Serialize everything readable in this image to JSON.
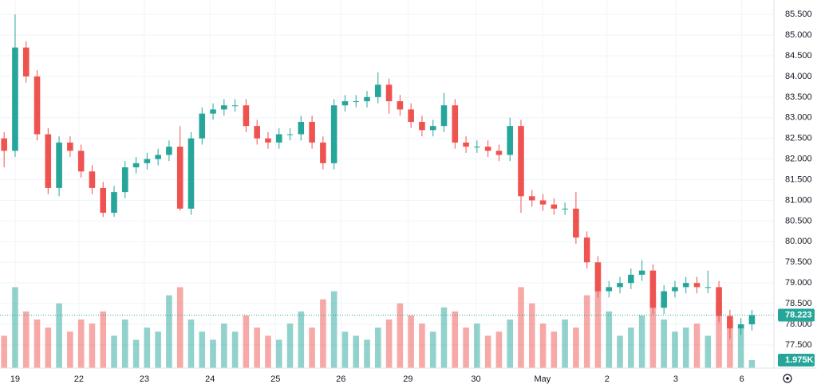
{
  "chart_data": {
    "type": "candlestick",
    "x": [
      -4,
      0,
      4,
      8,
      12,
      16,
      20,
      24,
      28,
      32,
      36,
      40,
      44,
      48,
      52,
      56,
      60,
      64,
      68,
      72,
      76,
      80,
      84,
      88,
      92,
      96,
      100,
      104,
      108,
      112,
      116,
      120,
      124,
      128,
      132,
      136,
      140,
      144,
      148,
      152,
      156,
      160,
      164,
      168,
      172,
      176,
      180,
      184,
      188,
      192,
      196,
      200,
      204,
      208,
      212,
      216,
      220,
      224,
      228,
      232,
      236,
      240,
      244,
      248,
      252,
      256,
      260,
      264,
      268
    ],
    "open": [
      82.5,
      82.2,
      84.7,
      84.0,
      82.6,
      81.3,
      82.4,
      82.2,
      81.7,
      81.3,
      80.7,
      81.2,
      81.8,
      81.9,
      82.0,
      82.1,
      82.3,
      80.8,
      82.5,
      83.1,
      83.2,
      83.3,
      83.3,
      82.8,
      82.5,
      82.4,
      82.6,
      82.6,
      82.9,
      82.4,
      81.9,
      83.3,
      83.4,
      83.4,
      83.5,
      83.8,
      83.4,
      83.2,
      82.9,
      82.7,
      82.8,
      83.3,
      82.4,
      82.3,
      82.3,
      82.2,
      82.1,
      82.8,
      81.1,
      81.0,
      80.9,
      80.8,
      80.8,
      80.1,
      79.5,
      78.8,
      78.9,
      79.0,
      79.2,
      79.3,
      78.4,
      78.8,
      78.9,
      79.0,
      78.9,
      78.9,
      78.2,
      77.9,
      78.0
    ],
    "high": [
      82.65,
      85.5,
      84.85,
      84.15,
      82.75,
      82.55,
      82.55,
      82.35,
      81.85,
      81.45,
      81.35,
      81.95,
      82.05,
      82.15,
      82.25,
      82.45,
      82.8,
      82.65,
      83.25,
      83.35,
      83.45,
      83.45,
      83.45,
      82.95,
      82.65,
      82.75,
      82.75,
      83.05,
      83.05,
      82.55,
      83.45,
      83.55,
      83.55,
      83.65,
      84.1,
      83.95,
      83.55,
      83.35,
      83.05,
      82.95,
      83.6,
      83.45,
      82.55,
      82.45,
      82.45,
      82.35,
      83.0,
      82.95,
      81.25,
      81.15,
      81.05,
      80.95,
      81.2,
      80.25,
      79.65,
      79.05,
      79.15,
      79.35,
      79.55,
      79.45,
      78.95,
      79.05,
      79.15,
      79.15,
      79.3,
      79.05,
      78.35,
      78.15,
      78.35
    ],
    "low": [
      81.8,
      82.05,
      83.85,
      82.45,
      81.15,
      81.1,
      82.05,
      81.55,
      81.15,
      80.6,
      80.6,
      81.05,
      81.65,
      81.75,
      81.85,
      81.95,
      80.75,
      80.65,
      82.35,
      82.95,
      83.05,
      83.15,
      82.65,
      82.35,
      82.25,
      82.25,
      82.45,
      82.45,
      82.25,
      81.75,
      81.75,
      83.15,
      83.25,
      83.25,
      83.35,
      83.1,
      83.05,
      82.75,
      82.55,
      82.55,
      82.65,
      82.25,
      82.15,
      82.15,
      82.05,
      81.95,
      81.95,
      80.7,
      80.85,
      80.75,
      80.65,
      80.65,
      79.95,
      79.35,
      78.65,
      78.65,
      78.75,
      78.85,
      79.05,
      78.25,
      78.25,
      78.65,
      78.75,
      78.75,
      78.75,
      78.05,
      77.65,
      77.75,
      77.85
    ],
    "close": [
      82.2,
      84.7,
      84.0,
      82.6,
      81.3,
      82.4,
      82.2,
      81.7,
      81.3,
      80.7,
      81.2,
      81.8,
      81.9,
      82.0,
      82.1,
      82.3,
      80.8,
      82.5,
      83.1,
      83.2,
      83.3,
      83.3,
      82.8,
      82.5,
      82.4,
      82.6,
      82.6,
      82.9,
      82.4,
      81.9,
      83.3,
      83.4,
      83.4,
      83.5,
      83.8,
      83.4,
      83.2,
      82.9,
      82.7,
      82.8,
      83.3,
      82.4,
      82.3,
      82.3,
      82.2,
      82.1,
      82.8,
      81.1,
      81.0,
      80.9,
      80.8,
      80.8,
      80.1,
      79.5,
      78.8,
      78.9,
      79.0,
      79.2,
      79.3,
      78.4,
      78.8,
      78.9,
      79.0,
      78.9,
      78.9,
      78.2,
      77.9,
      78.0,
      78.223
    ],
    "volume": [
      8,
      20,
      14,
      12,
      10,
      16,
      9,
      12,
      11,
      14,
      8,
      12,
      7,
      10,
      9,
      18,
      20,
      12,
      9,
      7,
      11,
      9,
      13,
      10,
      8,
      7,
      11,
      14,
      10,
      17,
      19,
      9,
      8,
      7,
      10,
      12,
      16,
      13,
      11,
      9,
      15,
      14,
      10,
      11,
      8,
      9,
      12,
      20,
      16,
      11,
      9,
      12,
      10,
      18,
      20,
      14,
      8,
      10,
      13,
      17,
      12,
      9,
      10,
      11,
      8,
      16,
      12,
      10,
      1.975
    ],
    "last_volume_label": "1.975K",
    "xlim": [
      -5.5,
      276
    ],
    "ylim": [
      76.94,
      85.85
    ],
    "volume_ylim": [
      0,
      91
    ],
    "xticks": [
      {
        "value": 0,
        "label": "19"
      },
      {
        "value": 23.2,
        "label": "22"
      },
      {
        "value": 47,
        "label": "23"
      },
      {
        "value": 70.9,
        "label": "24"
      },
      {
        "value": 94.7,
        "label": "25"
      },
      {
        "value": 118.5,
        "label": "26"
      },
      {
        "value": 142.9,
        "label": "29"
      },
      {
        "value": 167.6,
        "label": "30"
      },
      {
        "value": 191.8,
        "label": "May"
      },
      {
        "value": 215.3,
        "label": "2"
      },
      {
        "value": 240.3,
        "label": "3"
      },
      {
        "value": 264.3,
        "label": "6"
      }
    ],
    "yticks": [
      {
        "value": 77.5,
        "label": "77.500"
      },
      {
        "value": 78,
        "label": "78.000"
      },
      {
        "value": 78.5,
        "label": "78.500"
      },
      {
        "value": 79,
        "label": "79.000"
      },
      {
        "value": 79.5,
        "label": "79.500"
      },
      {
        "value": 80,
        "label": "80.000"
      },
      {
        "value": 80.5,
        "label": "80.500"
      },
      {
        "value": 81,
        "label": "81.000"
      },
      {
        "value": 81.5,
        "label": "81.500"
      },
      {
        "value": 82,
        "label": "82.000"
      },
      {
        "value": 82.5,
        "label": "82.500"
      },
      {
        "value": 83,
        "label": "83.000"
      },
      {
        "value": 83.5,
        "label": "83.500"
      },
      {
        "value": 84,
        "label": "84.000"
      },
      {
        "value": 84.5,
        "label": "84.500"
      },
      {
        "value": 85,
        "label": "85.000"
      },
      {
        "value": 85.5,
        "label": "85.500"
      }
    ],
    "up_color": "#26a69a",
    "down_color": "#ef5350",
    "grid": true
  }
}
